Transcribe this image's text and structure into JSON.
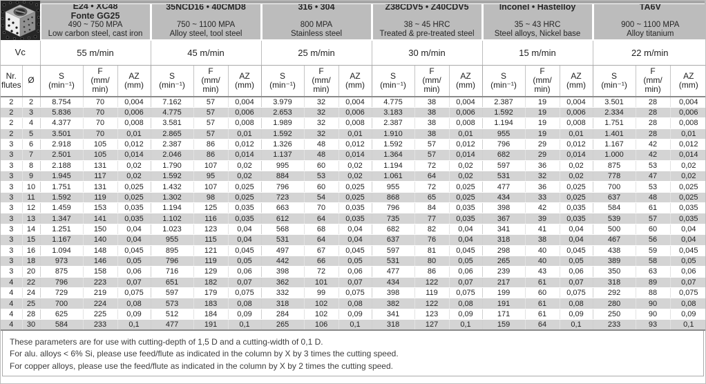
{
  "header": {
    "vc_label": "Vc",
    "materials": [
      {
        "name": "E24 • XC48",
        "name2": "Fonte GG25",
        "spec": "490 ~ 750 MPA",
        "desc": "Low carbon steel, cast iron",
        "vc": "55 m/min"
      },
      {
        "name": "35NCD16 • 40CMD8",
        "name2": "",
        "spec": "750 ~ 1100 MPA",
        "desc": "Alloy steel, tool steel",
        "vc": "45 m/min"
      },
      {
        "name": "316 • 304",
        "name2": "",
        "spec": "800 MPA",
        "desc": "Stainless steel",
        "vc": "25 m/min"
      },
      {
        "name": "Z38CDV5 • Z40CDV5",
        "name2": "",
        "spec": "38 ~ 45 HRC",
        "desc": "Treated & pre-treated steel",
        "vc": "30 m/min"
      },
      {
        "name": "Inconel • Hastelloy",
        "name2": "",
        "spec": "35 ~ 43 HRC",
        "desc": "Steel alloys, Nickel base",
        "vc": "15 m/min"
      },
      {
        "name": "TA6V",
        "name2": "",
        "spec": "900 ~ 1100 MPA",
        "desc": "Alloy titanium",
        "vc": "22 m/min"
      }
    ]
  },
  "columns": {
    "flutes": "Nr.\nflutes",
    "dia": "Ø",
    "s": "S\n(min⁻¹)",
    "f": "F\n(mm/\nmin)",
    "az": "AZ\n(mm)"
  },
  "rows": [
    [
      "2",
      "2",
      "8.754",
      "70",
      "0,004",
      "7.162",
      "57",
      "0,004",
      "3.979",
      "32",
      "0,004",
      "4.775",
      "38",
      "0,004",
      "2.387",
      "19",
      "0,004",
      "3.501",
      "28",
      "0,004"
    ],
    [
      "2",
      "3",
      "5.836",
      "70",
      "0,006",
      "4.775",
      "57",
      "0,006",
      "2.653",
      "32",
      "0,006",
      "3.183",
      "38",
      "0,006",
      "1.592",
      "19",
      "0,006",
      "2.334",
      "28",
      "0,006"
    ],
    [
      "2",
      "4",
      "4.377",
      "70",
      "0,008",
      "3.581",
      "57",
      "0,008",
      "1.989",
      "32",
      "0,008",
      "2.387",
      "38",
      "0,008",
      "1.194",
      "19",
      "0,008",
      "1.751",
      "28",
      "0,008"
    ],
    [
      "2",
      "5",
      "3.501",
      "70",
      "0,01",
      "2.865",
      "57",
      "0,01",
      "1.592",
      "32",
      "0,01",
      "1.910",
      "38",
      "0,01",
      "955",
      "19",
      "0,01",
      "1.401",
      "28",
      "0,01"
    ],
    [
      "3",
      "6",
      "2.918",
      "105",
      "0,012",
      "2.387",
      "86",
      "0,012",
      "1.326",
      "48",
      "0,012",
      "1.592",
      "57",
      "0,012",
      "796",
      "29",
      "0,012",
      "1.167",
      "42",
      "0,012"
    ],
    [
      "3",
      "7",
      "2.501",
      "105",
      "0,014",
      "2.046",
      "86",
      "0,014",
      "1.137",
      "48",
      "0,014",
      "1.364",
      "57",
      "0,014",
      "682",
      "29",
      "0,014",
      "1.000",
      "42",
      "0,014"
    ],
    [
      "3",
      "8",
      "2.188",
      "131",
      "0,02",
      "1.790",
      "107",
      "0,02",
      "995",
      "60",
      "0,02",
      "1.194",
      "72",
      "0,02",
      "597",
      "36",
      "0,02",
      "875",
      "53",
      "0,02"
    ],
    [
      "3",
      "9",
      "1.945",
      "117",
      "0,02",
      "1.592",
      "95",
      "0,02",
      "884",
      "53",
      "0,02",
      "1.061",
      "64",
      "0,02",
      "531",
      "32",
      "0,02",
      "778",
      "47",
      "0,02"
    ],
    [
      "3",
      "10",
      "1.751",
      "131",
      "0,025",
      "1.432",
      "107",
      "0,025",
      "796",
      "60",
      "0,025",
      "955",
      "72",
      "0,025",
      "477",
      "36",
      "0,025",
      "700",
      "53",
      "0,025"
    ],
    [
      "3",
      "11",
      "1.592",
      "119",
      "0,025",
      "1.302",
      "98",
      "0,025",
      "723",
      "54",
      "0,025",
      "868",
      "65",
      "0,025",
      "434",
      "33",
      "0,025",
      "637",
      "48",
      "0,025"
    ],
    [
      "3",
      "12",
      "1.459",
      "153",
      "0,035",
      "1.194",
      "125",
      "0,035",
      "663",
      "70",
      "0,035",
      "796",
      "84",
      "0,035",
      "398",
      "42",
      "0,035",
      "584",
      "61",
      "0,035"
    ],
    [
      "3",
      "13",
      "1.347",
      "141",
      "0,035",
      "1.102",
      "116",
      "0,035",
      "612",
      "64",
      "0,035",
      "735",
      "77",
      "0,035",
      "367",
      "39",
      "0,035",
      "539",
      "57",
      "0,035"
    ],
    [
      "3",
      "14",
      "1.251",
      "150",
      "0,04",
      "1.023",
      "123",
      "0,04",
      "568",
      "68",
      "0,04",
      "682",
      "82",
      "0,04",
      "341",
      "41",
      "0,04",
      "500",
      "60",
      "0,04"
    ],
    [
      "3",
      "15",
      "1.167",
      "140",
      "0,04",
      "955",
      "115",
      "0,04",
      "531",
      "64",
      "0,04",
      "637",
      "76",
      "0,04",
      "318",
      "38",
      "0,04",
      "467",
      "56",
      "0,04"
    ],
    [
      "3",
      "16",
      "1.094",
      "148",
      "0,045",
      "895",
      "121",
      "0,045",
      "497",
      "67",
      "0,045",
      "597",
      "81",
      "0,045",
      "298",
      "40",
      "0,045",
      "438",
      "59",
      "0,045"
    ],
    [
      "3",
      "18",
      "973",
      "146",
      "0,05",
      "796",
      "119",
      "0,05",
      "442",
      "66",
      "0,05",
      "531",
      "80",
      "0,05",
      "265",
      "40",
      "0,05",
      "389",
      "58",
      "0,05"
    ],
    [
      "3",
      "20",
      "875",
      "158",
      "0,06",
      "716",
      "129",
      "0,06",
      "398",
      "72",
      "0,06",
      "477",
      "86",
      "0,06",
      "239",
      "43",
      "0,06",
      "350",
      "63",
      "0,06"
    ],
    [
      "4",
      "22",
      "796",
      "223",
      "0,07",
      "651",
      "182",
      "0,07",
      "362",
      "101",
      "0,07",
      "434",
      "122",
      "0,07",
      "217",
      "61",
      "0,07",
      "318",
      "89",
      "0,07"
    ],
    [
      "4",
      "24",
      "729",
      "219",
      "0,075",
      "597",
      "179",
      "0,075",
      "332",
      "99",
      "0,075",
      "398",
      "119",
      "0,075",
      "199",
      "60",
      "0,075",
      "292",
      "88",
      "0,075"
    ],
    [
      "4",
      "25",
      "700",
      "224",
      "0,08",
      "573",
      "183",
      "0,08",
      "318",
      "102",
      "0,08",
      "382",
      "122",
      "0,08",
      "191",
      "61",
      "0,08",
      "280",
      "90",
      "0,08"
    ],
    [
      "4",
      "28",
      "625",
      "225",
      "0,09",
      "512",
      "184",
      "0,09",
      "284",
      "102",
      "0,09",
      "341",
      "123",
      "0,09",
      "171",
      "61",
      "0,09",
      "250",
      "90",
      "0,09"
    ],
    [
      "4",
      "30",
      "584",
      "233",
      "0,1",
      "477",
      "191",
      "0,1",
      "265",
      "106",
      "0,1",
      "318",
      "127",
      "0,1",
      "159",
      "64",
      "0,1",
      "233",
      "93",
      "0,1"
    ]
  ],
  "notes": [
    "These parameters are for use with cutting-depth of 1,5 D and a cutting-width of 0,1 D.",
    "For alu. alloys < 6% Si, please use feed/flute as indicated in the column by X by 3 times the cutting speed.",
    "For copper alloys, please use the feed/flute as indicated in the column by X by 2 times the cutting speed."
  ],
  "colors": {
    "header_gray": "#bcbcbc",
    "row_alt_gray": "#d4d4d4",
    "top_strip_gray": "#a6a6a6",
    "rule_dark_gray": "#8a8a8a"
  }
}
